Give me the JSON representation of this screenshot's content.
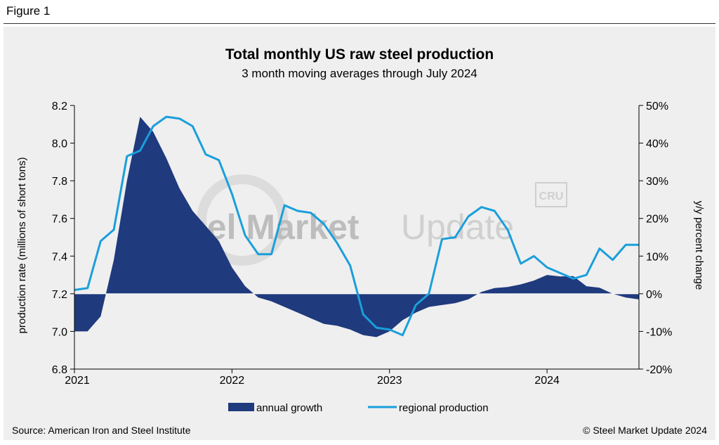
{
  "figure_label": "Figure 1",
  "source": "Source: American Iron and Steel Institute",
  "copyright": "© Steel Market Update 2024",
  "watermark": {
    "brand_bold": "Steel Market",
    "brand_light": "Update",
    "logo_text": "CRU"
  },
  "colors": {
    "annual_growth": "#1f3a7d",
    "regional_production": "#1a9fdb",
    "background": "#efefef"
  },
  "chart_data": {
    "type": "line",
    "title": "Total monthly US raw steel production",
    "subtitle": "3 month moving averages through July 2024",
    "ylabel": "production rate (millions of short tons)",
    "y2label": "y/y percent change",
    "ylim": [
      6.8,
      8.2
    ],
    "y2lim": [
      -20,
      50
    ],
    "yticks": [
      "6.8",
      "7.0",
      "7.2",
      "7.4",
      "7.6",
      "7.8",
      "8.0",
      "8.2"
    ],
    "y2ticks": [
      "-20%",
      "-10%",
      "0%",
      "10%",
      "20%",
      "30%",
      "40%",
      "50%"
    ],
    "xlim": [
      2021.0,
      2024.5833
    ],
    "xticks": [
      {
        "value": 2021.0,
        "label": "2021"
      },
      {
        "value": 2022.0,
        "label": "2022"
      },
      {
        "value": 2023.0,
        "label": "2023"
      },
      {
        "value": 2024.0,
        "label": "2024"
      }
    ],
    "grid": false,
    "legend": [
      "annual growth",
      "regional production"
    ],
    "series": [
      {
        "name": "annual growth",
        "type": "area",
        "axis": "right",
        "x": [
          2021.0,
          2021.0833,
          2021.1667,
          2021.25,
          2021.3333,
          2021.4167,
          2021.5,
          2021.5833,
          2021.6667,
          2021.75,
          2021.8333,
          2021.9167,
          2022.0,
          2022.0833,
          2022.1667,
          2022.25,
          2022.3333,
          2022.4167,
          2022.5,
          2022.5833,
          2022.6667,
          2022.75,
          2022.8333,
          2022.9167,
          2023.0,
          2023.0833,
          2023.1667,
          2023.25,
          2023.3333,
          2023.4167,
          2023.5,
          2023.5833,
          2023.6667,
          2023.75,
          2023.8333,
          2023.9167,
          2024.0,
          2024.0833,
          2024.1667,
          2024.25,
          2024.3333,
          2024.4167,
          2024.5,
          2024.5833
        ],
        "values": [
          -10,
          -10,
          -6,
          9,
          30,
          47,
          43,
          36,
          28,
          22,
          18,
          14,
          7,
          2,
          -1,
          -2,
          -3.5,
          -5,
          -6.5,
          -8,
          -8.5,
          -9.5,
          -11,
          -11.5,
          -10,
          -7,
          -5,
          -3.5,
          -3,
          -2.5,
          -1.5,
          0.5,
          1.5,
          1.8,
          2.5,
          3.5,
          5,
          4.6,
          4.7,
          2,
          1.6,
          0,
          -1,
          -1.5
        ]
      },
      {
        "name": "regional production",
        "type": "line",
        "axis": "left",
        "x": [
          2021.0,
          2021.0833,
          2021.1667,
          2021.25,
          2021.3333,
          2021.4167,
          2021.5,
          2021.5833,
          2021.6667,
          2021.75,
          2021.8333,
          2021.9167,
          2022.0,
          2022.0833,
          2022.1667,
          2022.25,
          2022.3333,
          2022.4167,
          2022.5,
          2022.5833,
          2022.6667,
          2022.75,
          2022.8333,
          2022.9167,
          2023.0,
          2023.0833,
          2023.1667,
          2023.25,
          2023.3333,
          2023.4167,
          2023.5,
          2023.5833,
          2023.6667,
          2023.75,
          2023.8333,
          2023.9167,
          2024.0,
          2024.0833,
          2024.1667,
          2024.25,
          2024.3333,
          2024.4167,
          2024.5,
          2024.5833
        ],
        "values": [
          7.22,
          7.23,
          7.48,
          7.54,
          7.93,
          7.96,
          8.09,
          8.14,
          8.13,
          8.09,
          7.94,
          7.91,
          7.73,
          7.51,
          7.41,
          7.41,
          7.67,
          7.64,
          7.63,
          7.57,
          7.47,
          7.35,
          7.09,
          7.02,
          7.01,
          6.98,
          7.14,
          7.2,
          7.49,
          7.5,
          7.61,
          7.66,
          7.64,
          7.54,
          7.36,
          7.4,
          7.34,
          7.31,
          7.28,
          7.3,
          7.44,
          7.38,
          7.46,
          7.46
        ]
      }
    ]
  }
}
